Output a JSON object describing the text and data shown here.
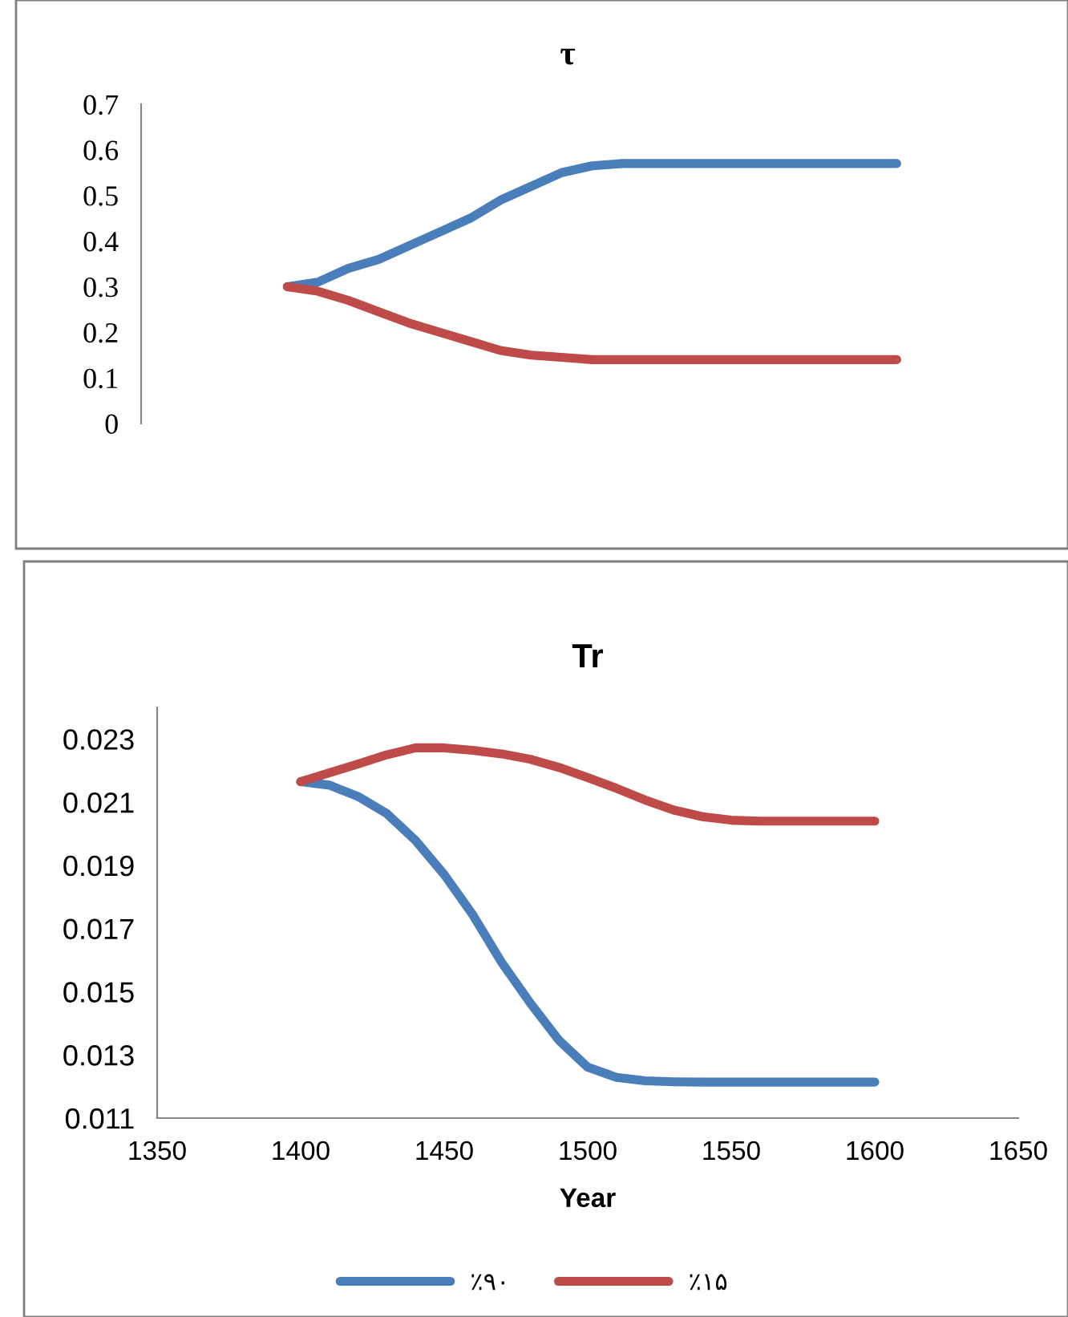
{
  "chart_data": [
    {
      "type": "line",
      "title": "τ",
      "categories": [
        null,
        null,
        null,
        null,
        null,
        null,
        null,
        null,
        null,
        null,
        null,
        null,
        null,
        null,
        null,
        null,
        null,
        null,
        null,
        null,
        null
      ],
      "series": [
        {
          "color": "#4a7ebb",
          "values": [
            0.3,
            0.31,
            0.34,
            0.36,
            0.39,
            0.42,
            0.45,
            0.49,
            0.52,
            0.55,
            0.565,
            0.57,
            0.57,
            0.57,
            0.57,
            0.57,
            0.57,
            0.57,
            0.57,
            0.57,
            0.57
          ]
        },
        {
          "color": "#be4b48",
          "values": [
            0.3,
            0.29,
            0.27,
            0.245,
            0.22,
            0.2,
            0.18,
            0.16,
            0.15,
            0.145,
            0.14,
            0.14,
            0.14,
            0.14,
            0.14,
            0.14,
            0.14,
            0.14,
            0.14,
            0.14,
            0.14
          ]
        }
      ],
      "ylim": [
        0,
        0.7
      ],
      "yticks": [
        0,
        0.1,
        0.2,
        0.3,
        0.4,
        0.5,
        0.6,
        0.7
      ],
      "tick_labels": "y",
      "grid": false,
      "legend": false,
      "marker": "none",
      "line_style": "solid"
    },
    {
      "type": "line",
      "title": "Tr",
      "xlabel": "Year",
      "x": [
        1400,
        1410,
        1420,
        1430,
        1440,
        1450,
        1460,
        1470,
        1480,
        1490,
        1500,
        1510,
        1520,
        1530,
        1540,
        1550,
        1560,
        1570,
        1580,
        1590,
        1600
      ],
      "series": [
        {
          "name": "٪۹۰",
          "color": "#4a7ebb",
          "values": [
            0.02165,
            0.02154,
            0.02118,
            0.02064,
            0.01979,
            0.01871,
            0.01743,
            0.01593,
            0.01464,
            0.01346,
            0.01261,
            0.01229,
            0.01218,
            0.01215,
            0.01214,
            0.01214,
            0.01214,
            0.01214,
            0.01214,
            0.01214,
            0.01214
          ]
        },
        {
          "name": "٪۱۵",
          "color": "#be4b48",
          "values": [
            0.02165,
            0.02193,
            0.02221,
            0.0225,
            0.02272,
            0.02272,
            0.02264,
            0.02253,
            0.02236,
            0.0221,
            0.02178,
            0.02144,
            0.02107,
            0.02075,
            0.02054,
            0.02043,
            0.0204,
            0.0204,
            0.0204,
            0.0204,
            0.0204
          ]
        }
      ],
      "xlim": [
        1350,
        1650
      ],
      "xticks": [
        1350,
        1400,
        1450,
        1500,
        1550,
        1600,
        1650
      ],
      "ylim": [
        0.011,
        0.024
      ],
      "yticks": [
        0.011,
        0.013,
        0.015,
        0.017,
        0.019,
        0.021,
        0.023
      ],
      "grid": false,
      "legend": "bottom",
      "marker": "none",
      "line_style": "solid"
    }
  ]
}
